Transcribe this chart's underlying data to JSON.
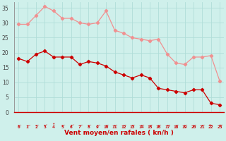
{
  "x": [
    0,
    1,
    2,
    3,
    4,
    5,
    6,
    7,
    8,
    9,
    10,
    11,
    12,
    13,
    14,
    15,
    16,
    17,
    18,
    19,
    20,
    21,
    22,
    23
  ],
  "wind_avg": [
    18,
    17,
    19.5,
    20.5,
    18.5,
    18.5,
    18.5,
    16,
    17,
    16.5,
    15.5,
    13.5,
    12.5,
    11.5,
    12.5,
    11.5,
    8,
    7.5,
    7,
    6.5,
    7.5,
    7.5,
    3,
    2.5
  ],
  "wind_gust": [
    29.5,
    29.5,
    32.5,
    35.5,
    34,
    31.5,
    31.5,
    30,
    29.5,
    30,
    34,
    27.5,
    26.5,
    25,
    24.5,
    24,
    24.5,
    19.5,
    16.5,
    16,
    18.5,
    18.5,
    19,
    10.5
  ],
  "bg_color": "#cff0eb",
  "grid_color": "#b0ddd8",
  "avg_color": "#cc0000",
  "gust_color": "#f09090",
  "xlabel": "Vent moyen/en rafales ( kn/h )",
  "xlabel_color": "#cc0000",
  "tick_color": "#cc0000",
  "ylim": [
    0,
    37
  ],
  "yticks": [
    0,
    5,
    10,
    15,
    20,
    25,
    30,
    35
  ],
  "markersize": 2.2,
  "linewidth": 0.9
}
